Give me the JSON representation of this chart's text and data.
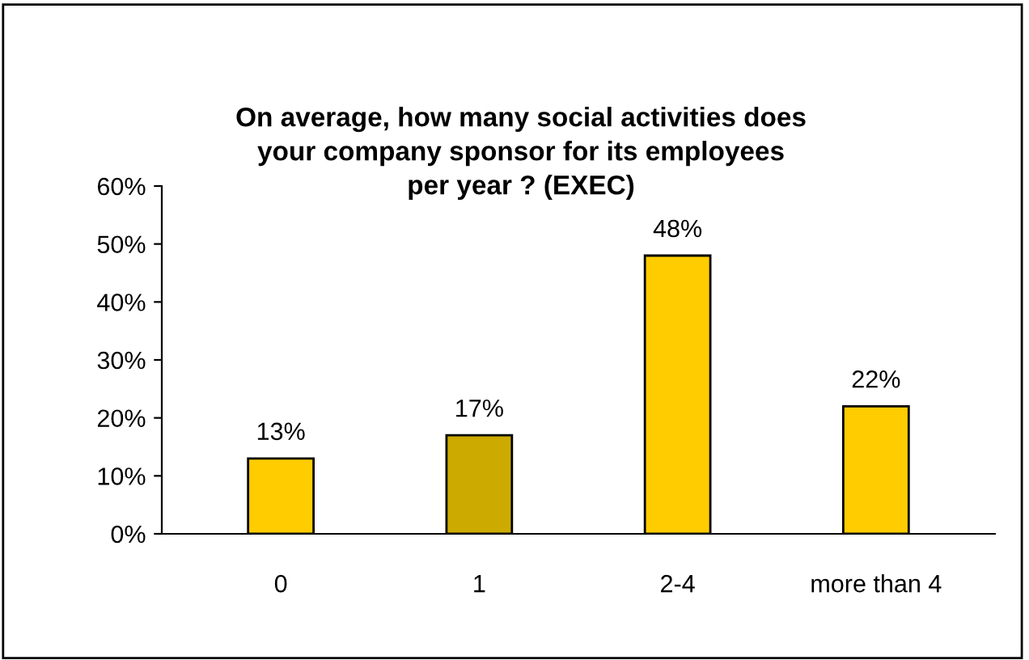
{
  "chart_data": {
    "type": "bar",
    "title": "On average, how many social activities does\nyour company sponsor for its employees\nper year ? (EXEC)",
    "categories": [
      "0",
      "1",
      "2-4",
      "more than 4"
    ],
    "values": [
      13,
      17,
      48,
      22
    ],
    "value_labels": [
      "13%",
      "17%",
      "48%",
      "22%"
    ],
    "colors": [
      "#ffcc00",
      "#ccaa00",
      "#ffcc00",
      "#ffcc00"
    ],
    "ylim": [
      0,
      60
    ],
    "yticks": [
      {
        "value": 0,
        "label": "0%"
      },
      {
        "value": 10,
        "label": "10%"
      },
      {
        "value": 20,
        "label": "20%"
      },
      {
        "value": 30,
        "label": "30%"
      },
      {
        "value": 40,
        "label": "40%"
      },
      {
        "value": 50,
        "label": "50%"
      },
      {
        "value": 60,
        "label": "60%"
      }
    ],
    "grid": false,
    "legend": false
  }
}
